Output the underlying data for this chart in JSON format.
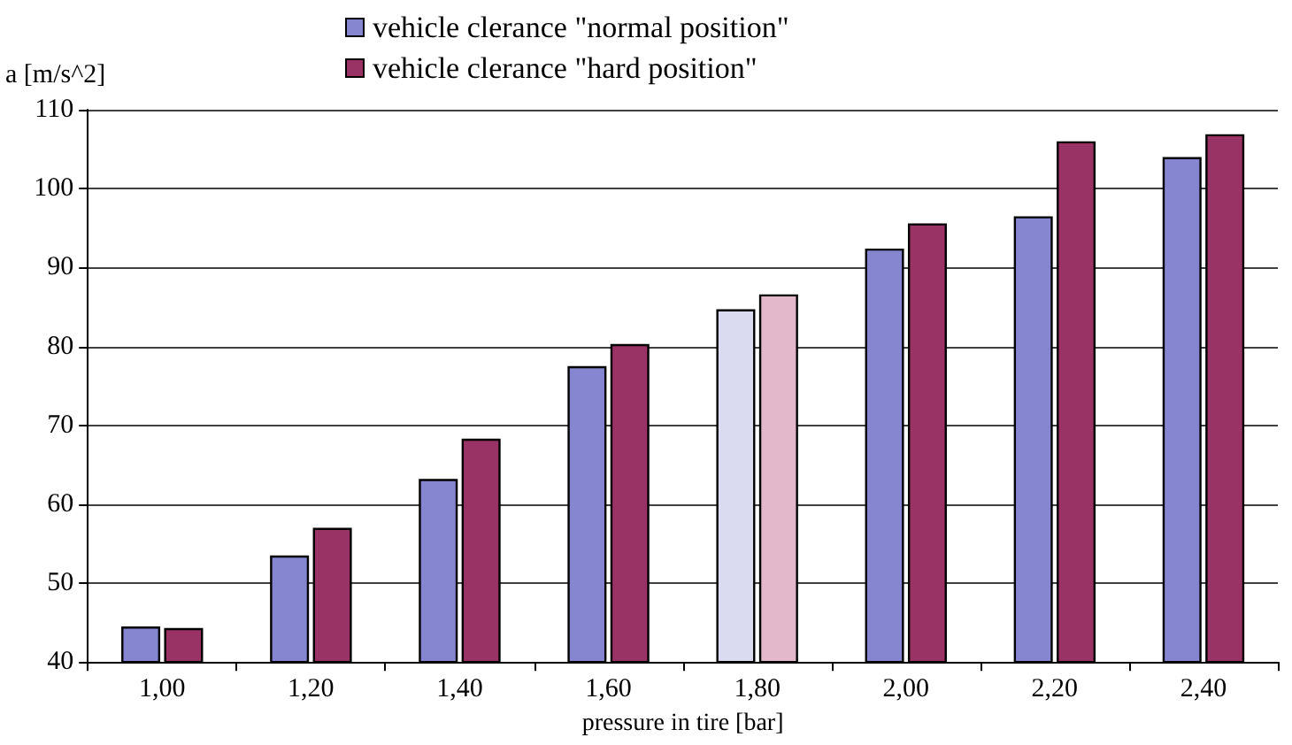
{
  "chart_data": {
    "type": "bar",
    "xlabel": "pressure in tire [bar]",
    "ylabel": "a [m/s^2]",
    "categories": [
      "1,00",
      "1,20",
      "1,40",
      "1,60",
      "1,80",
      "2,00",
      "2,20",
      "2,40"
    ],
    "series": [
      {
        "name": "vehicle clerance \"normal position\"",
        "color": "#8585d0",
        "colors": [
          "#8585d0",
          "#8585d0",
          "#8585d0",
          "#8585d0",
          "#dadaf0",
          "#8585d0",
          "#8585d0",
          "#8585d0"
        ],
        "values": [
          44.5,
          53.5,
          63.2,
          77.5,
          84.7,
          92.4,
          96.5,
          104
        ]
      },
      {
        "name": "vehicle clerance \"hard position\"",
        "color": "#993366",
        "colors": [
          "#993366",
          "#993366",
          "#993366",
          "#993366",
          "#e2b8ca",
          "#993366",
          "#993366",
          "#993366"
        ],
        "values": [
          44.3,
          57,
          68.3,
          80.3,
          86.6,
          95.6,
          106,
          106.9
        ]
      }
    ],
    "ylim": [
      40,
      110
    ],
    "yticks": [
      40,
      50,
      60,
      70,
      80,
      90,
      100,
      110
    ],
    "grid": "y",
    "legend": "top"
  }
}
